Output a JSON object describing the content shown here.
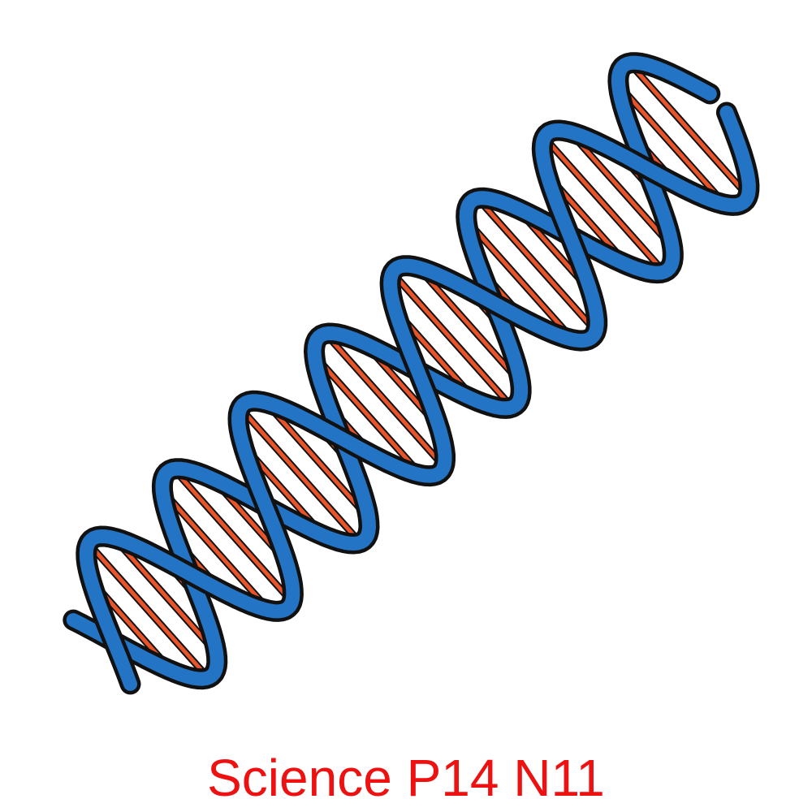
{
  "illustration": {
    "subject": "dna-double-helix-icon",
    "strand_color": "#2374c4",
    "outline_color": "#111111",
    "rung_color": "#e8542a"
  },
  "caption": {
    "text": "Science P14 N11",
    "color": "#ee1111"
  }
}
